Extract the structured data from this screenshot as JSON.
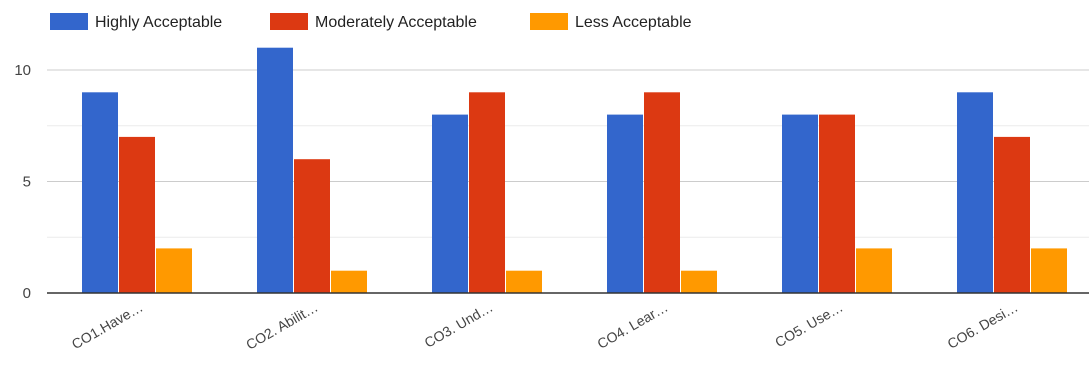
{
  "chart_data": {
    "type": "bar",
    "categories": [
      "CO1.Have…",
      "CO2. Abilit…",
      "CO3. Und…",
      "CO4. Lear…",
      "CO5. Use…",
      "CO6. Desi…"
    ],
    "series": [
      {
        "name": "Highly Acceptable",
        "color": "#3366cc",
        "values": [
          9,
          11,
          8,
          8,
          8,
          9
        ]
      },
      {
        "name": "Moderately Acceptable",
        "color": "#dc3912",
        "values": [
          7,
          6,
          9,
          9,
          8,
          7
        ]
      },
      {
        "name": "Less Acceptable",
        "color": "#ff9900",
        "values": [
          2,
          1,
          1,
          1,
          2,
          2
        ]
      }
    ],
    "y_ticks": [
      0,
      5,
      10
    ],
    "ylim": [
      0,
      12
    ],
    "legend_position": "top",
    "grid": true
  }
}
